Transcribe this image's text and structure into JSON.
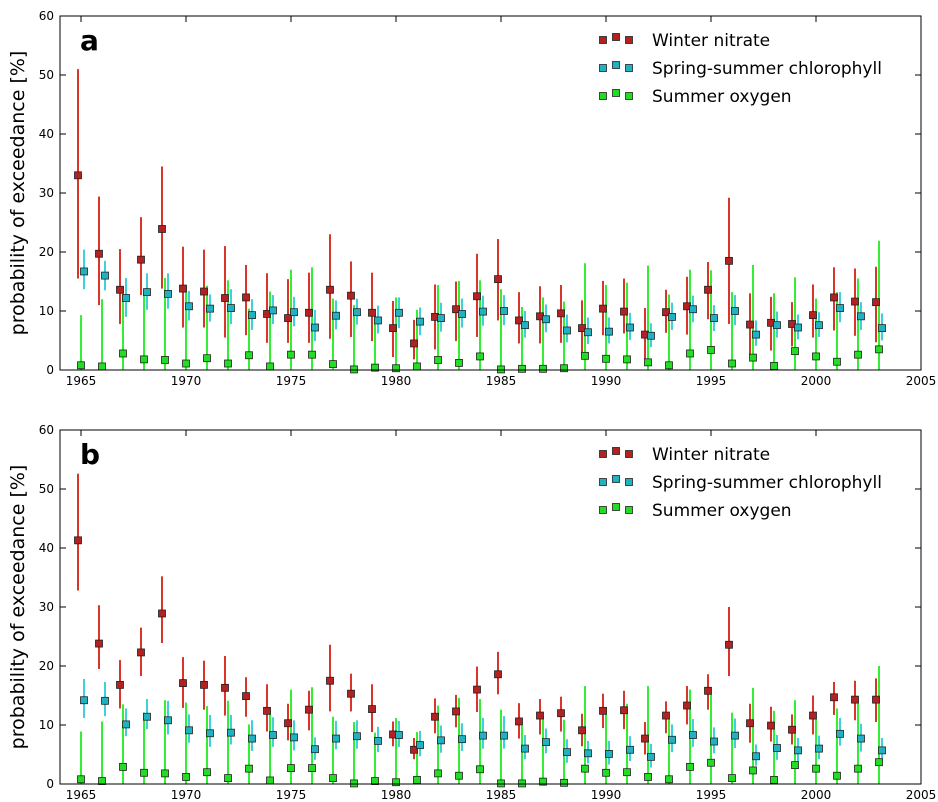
{
  "colors": {
    "nitrate_face": "#b22222",
    "nitrate_err": "#d9352b",
    "chlorophyll_face": "#20b2c0",
    "chlorophyll_err": "#3fd0dc",
    "oxygen_face": "#22dd22",
    "oxygen_err": "#33ee33",
    "marker_edge": "#222222",
    "axis": "#000000"
  },
  "chart_data": [
    {
      "type": "scatter",
      "panel_label": "a",
      "ylabel": "probability of exceedance [%]",
      "xlabel": "",
      "xlim": [
        1964,
        2005
      ],
      "ylim": [
        0,
        60
      ],
      "xticks": [
        "1965",
        "1970",
        "1975",
        "1980",
        "1985",
        "1990",
        "1995",
        "2000",
        "2005"
      ],
      "yticks": [
        "0",
        "10",
        "20",
        "30",
        "40",
        "50",
        "60"
      ],
      "grid": false,
      "legend_position": "top-right",
      "x": [
        1965,
        1966,
        1967,
        1968,
        1969,
        1970,
        1971,
        1972,
        1973,
        1974,
        1975,
        1976,
        1977,
        1978,
        1979,
        1980,
        1981,
        1982,
        1983,
        1984,
        1985,
        1986,
        1987,
        1988,
        1989,
        1990,
        1991,
        1992,
        1993,
        1994,
        1995,
        1996,
        1997,
        1998,
        1999,
        2000,
        2001,
        2002,
        2003
      ],
      "series": [
        {
          "name": "Winter nitrate",
          "values": [
            33,
            19.7,
            13.6,
            18.7,
            23.9,
            13.8,
            13.3,
            12.2,
            12.3,
            9.5,
            8.8,
            9.7,
            13.6,
            12.6,
            9.7,
            7.1,
            4.5,
            9,
            10.3,
            12.5,
            15.4,
            8.4,
            9.1,
            9.6,
            7.1,
            10.4,
            9.9,
            6,
            9.8,
            10.8,
            13.6,
            18.5,
            7.7,
            8,
            7.8,
            9.3,
            12.3,
            11.6,
            11.5
          ],
          "lower": [
            15.5,
            11,
            7.8,
            12.7,
            13.8,
            7.2,
            7.2,
            5.5,
            5.9,
            4.6,
            4.6,
            4.6,
            5.3,
            5.6,
            4.9,
            2.2,
            1.8,
            3.5,
            4.9,
            5.6,
            8.4,
            4.5,
            4.5,
            4.6,
            2.6,
            5.9,
            6.2,
            1.8,
            6.3,
            6,
            8.6,
            7.8,
            2.5,
            3.3,
            4,
            5.5,
            6.7,
            5.8,
            4.7
          ],
          "upper": [
            51,
            29.4,
            20.5,
            25.9,
            34.5,
            20.9,
            20.4,
            21,
            17.8,
            16.4,
            15.4,
            16.5,
            23,
            18.4,
            16.5,
            11.7,
            8.5,
            14.5,
            15,
            19.7,
            22.2,
            13.2,
            14.2,
            14.4,
            11.8,
            15.1,
            15.5,
            10.5,
            13.6,
            15.8,
            18.3,
            29.2,
            13,
            12.4,
            11.5,
            14.5,
            17.4,
            17.2,
            17.5
          ]
        },
        {
          "name": "Spring-summer chlorophyll",
          "values": [
            16.7,
            16,
            12.2,
            13.2,
            12.9,
            10.8,
            10.4,
            10.5,
            9.3,
            10.1,
            9.8,
            7.2,
            9.2,
            9.8,
            8.4,
            9.7,
            8.2,
            8.8,
            9.5,
            9.9,
            10,
            7.6,
            8.6,
            6.7,
            6.4,
            6.5,
            7.2,
            5.8,
            9,
            10.3,
            8.8,
            10,
            6,
            7.6,
            7.2,
            7.6,
            10.5,
            9.1,
            7.1
          ],
          "lower": [
            13.7,
            13.5,
            9,
            10.2,
            10.4,
            8.4,
            8.2,
            7.8,
            6.8,
            7.8,
            7.4,
            4.9,
            6.9,
            7.7,
            6.2,
            7.1,
            5.9,
            6.5,
            7.2,
            7.5,
            7.6,
            5.5,
            6.4,
            4.7,
            4.4,
            4.5,
            5.1,
            3.9,
            6.8,
            8.1,
            6.6,
            7.6,
            4.1,
            5.5,
            5.2,
            5.6,
            8.1,
            6.8,
            5
          ],
          "upper": [
            20.4,
            18.5,
            15.6,
            16.4,
            16.4,
            13.4,
            12.8,
            13.7,
            12,
            12.7,
            12.4,
            10.2,
            11.8,
            12.1,
            10.9,
            12.3,
            10.6,
            11.4,
            12.1,
            12.6,
            12.7,
            10,
            11.1,
            9.4,
            8.9,
            8.9,
            9.7,
            7.9,
            11.4,
            12.6,
            11,
            12.7,
            8.4,
            9.9,
            9.4,
            9.8,
            13.2,
            11.5,
            9.6
          ]
        },
        {
          "name": "Summer oxygen",
          "values": [
            0.8,
            0.6,
            2.8,
            1.8,
            1.7,
            1.1,
            2,
            1.1,
            2.5,
            0.6,
            2.6,
            2.6,
            1,
            0.1,
            0.4,
            0.3,
            0.6,
            1.7,
            1.2,
            2.3,
            0.1,
            0.2,
            0.2,
            0.3,
            2.4,
            1.9,
            1.8,
            1.3,
            0.8,
            2.8,
            3.4,
            1.1,
            2.1,
            0.7,
            3.2,
            2.3,
            1.4,
            2.6,
            3.5
          ],
          "lower": [
            0,
            0,
            0,
            0,
            0,
            0,
            0,
            0,
            0,
            0,
            0,
            0,
            0,
            0,
            0,
            0,
            0,
            0,
            0,
            0,
            0,
            0,
            0,
            0,
            0,
            0,
            0,
            0,
            0,
            0,
            0,
            0,
            0,
            0,
            0,
            0,
            0,
            0,
            0
          ],
          "upper": [
            9.3,
            12,
            14.1,
            13.2,
            15.6,
            14.3,
            14.3,
            15.2,
            10.4,
            13.3,
            17,
            17.4,
            12.1,
            11,
            9.4,
            12.3,
            10.2,
            14.4,
            15.1,
            15.2,
            13.7,
            10.7,
            12.3,
            11.6,
            18.1,
            14.4,
            14.8,
            17.7,
            12.8,
            17,
            16.9,
            13.2,
            17.8,
            13,
            15.7,
            12.1,
            13.2,
            15.5,
            21.9
          ]
        }
      ]
    },
    {
      "type": "scatter",
      "panel_label": "b",
      "ylabel": "probability of exceedance [%]",
      "xlabel": "",
      "xlim": [
        1964,
        2005
      ],
      "ylim": [
        0,
        60
      ],
      "xticks": [
        "1965",
        "1970",
        "1975",
        "1980",
        "1985",
        "1990",
        "1995",
        "2000",
        "2005"
      ],
      "yticks": [
        "0",
        "10",
        "20",
        "30",
        "40",
        "50",
        "60"
      ],
      "grid": false,
      "legend_position": "top-right",
      "x": [
        1965,
        1966,
        1967,
        1968,
        1969,
        1970,
        1971,
        1972,
        1973,
        1974,
        1975,
        1976,
        1977,
        1978,
        1979,
        1980,
        1981,
        1982,
        1983,
        1984,
        1985,
        1986,
        1987,
        1988,
        1989,
        1990,
        1991,
        1992,
        1993,
        1994,
        1995,
        1996,
        1997,
        1998,
        1999,
        2000,
        2001,
        2002,
        2003
      ],
      "series": [
        {
          "name": "Winter nitrate",
          "values": [
            41.3,
            23.8,
            16.8,
            22.3,
            28.9,
            17.1,
            16.8,
            16.3,
            14.9,
            12.4,
            10.3,
            12.6,
            17.5,
            15.3,
            12.7,
            8.4,
            5.8,
            11.4,
            12.3,
            16,
            18.6,
            10.6,
            11.6,
            12,
            9.1,
            12.4,
            12.5,
            7.7,
            11.6,
            13.3,
            15.8,
            23.6,
            10.3,
            9.9,
            9.2,
            11.6,
            14.7,
            14.3,
            14.3
          ],
          "lower": [
            32.8,
            19.5,
            12.8,
            18.3,
            23.9,
            12.9,
            12.6,
            11.6,
            11.4,
            8.9,
            7.4,
            9.1,
            12.3,
            12.3,
            8.8,
            6.4,
            4.2,
            8.6,
            9.6,
            12.2,
            15.2,
            7.7,
            8.4,
            8.9,
            6.4,
            9.5,
            9.3,
            5,
            8.6,
            10.1,
            12.6,
            18.3,
            7,
            7.2,
            6.7,
            8.4,
            11.7,
            10.8,
            10.5
          ],
          "upper": [
            52.6,
            30.3,
            21,
            26.5,
            35.2,
            21.5,
            20.9,
            21.7,
            18.1,
            16.9,
            13.6,
            15.8,
            23.6,
            18.7,
            16.9,
            10.6,
            7.8,
            14.5,
            15.1,
            19.9,
            22.4,
            13.7,
            14.4,
            14.8,
            11.9,
            15.3,
            15.8,
            10.5,
            14,
            16.6,
            18.6,
            30,
            13.6,
            13.1,
            11.8,
            15,
            17.3,
            17.5,
            17.9
          ],
          "note_point": null
        },
        {
          "name": "Spring-summer chlorophyll",
          "values": [
            14.2,
            14.1,
            10.1,
            11.4,
            10.8,
            9.1,
            8.6,
            8.7,
            7.7,
            8.3,
            7.9,
            5.9,
            7.7,
            8.1,
            7.3,
            8.3,
            6.6,
            7.4,
            7.6,
            8.2,
            8.2,
            6,
            7.1,
            5.4,
            5.2,
            5.1,
            5.8,
            4.6,
            7.5,
            8.3,
            7.2,
            8.2,
            4.7,
            6.1,
            5.7,
            6,
            8.5,
            7.7,
            5.7
          ],
          "lower": [
            11.2,
            11.5,
            8.1,
            9.3,
            8.4,
            7,
            6.3,
            6.7,
            5.6,
            6.3,
            5.7,
            4.1,
            5.9,
            6,
            5.4,
            6.3,
            4.7,
            5.3,
            5.6,
            6,
            6,
            4.2,
            5.2,
            3.6,
            3.5,
            3.3,
            3.9,
            2.8,
            5.4,
            6.3,
            5.2,
            6.1,
            3.1,
            4.1,
            3.8,
            4.2,
            6.5,
            5.5,
            3.8
          ],
          "upper": [
            17.8,
            17.3,
            12.8,
            14.4,
            14.1,
            11.8,
            11.7,
            11.7,
            10.8,
            11.3,
            10.8,
            7.9,
            10.7,
            10.8,
            9.7,
            10.7,
            9,
            9.9,
            10.3,
            11.2,
            11.5,
            8.3,
            9.4,
            7.6,
            7.3,
            7.3,
            8.1,
            6.8,
            10.1,
            11,
            9.6,
            11.1,
            6.7,
            8.3,
            7.8,
            8.2,
            11.2,
            10.2,
            7.8
          ]
        },
        {
          "name": "Summer oxygen",
          "values": [
            0.8,
            0.5,
            2.9,
            1.9,
            1.8,
            1.2,
            2,
            1,
            2.6,
            0.6,
            2.7,
            2.7,
            1,
            0.1,
            0.5,
            0.3,
            0.7,
            1.8,
            1.4,
            2.5,
            0.1,
            0.1,
            0.4,
            0.2,
            2.6,
            1.9,
            2,
            1.2,
            0.8,
            2.9,
            3.6,
            1,
            2.3,
            0.7,
            3.2,
            2.6,
            1.4,
            2.6,
            3.7
          ],
          "lower": [
            0,
            0,
            0,
            0,
            0,
            0,
            0,
            0,
            0,
            0,
            0,
            0,
            0,
            0,
            0,
            0,
            0,
            0,
            0,
            0,
            0,
            0,
            0,
            0,
            0,
            0,
            0,
            0,
            0,
            0,
            0,
            0,
            0,
            0,
            0,
            0,
            0,
            0,
            0
          ],
          "upper": [
            8.9,
            10.6,
            13.5,
            12.1,
            14.2,
            13.8,
            13.2,
            14.1,
            10.1,
            12.7,
            16,
            16.4,
            11.4,
            10.5,
            8.7,
            11.2,
            8.8,
            13.3,
            14.6,
            14.4,
            12.6,
            9.9,
            11.5,
            10.9,
            16.6,
            13,
            13.6,
            16.6,
            11.2,
            16,
            15.3,
            12.1,
            16.3,
            12.4,
            14.2,
            11,
            12.8,
            14.3,
            20
          ]
        }
      ]
    }
  ]
}
